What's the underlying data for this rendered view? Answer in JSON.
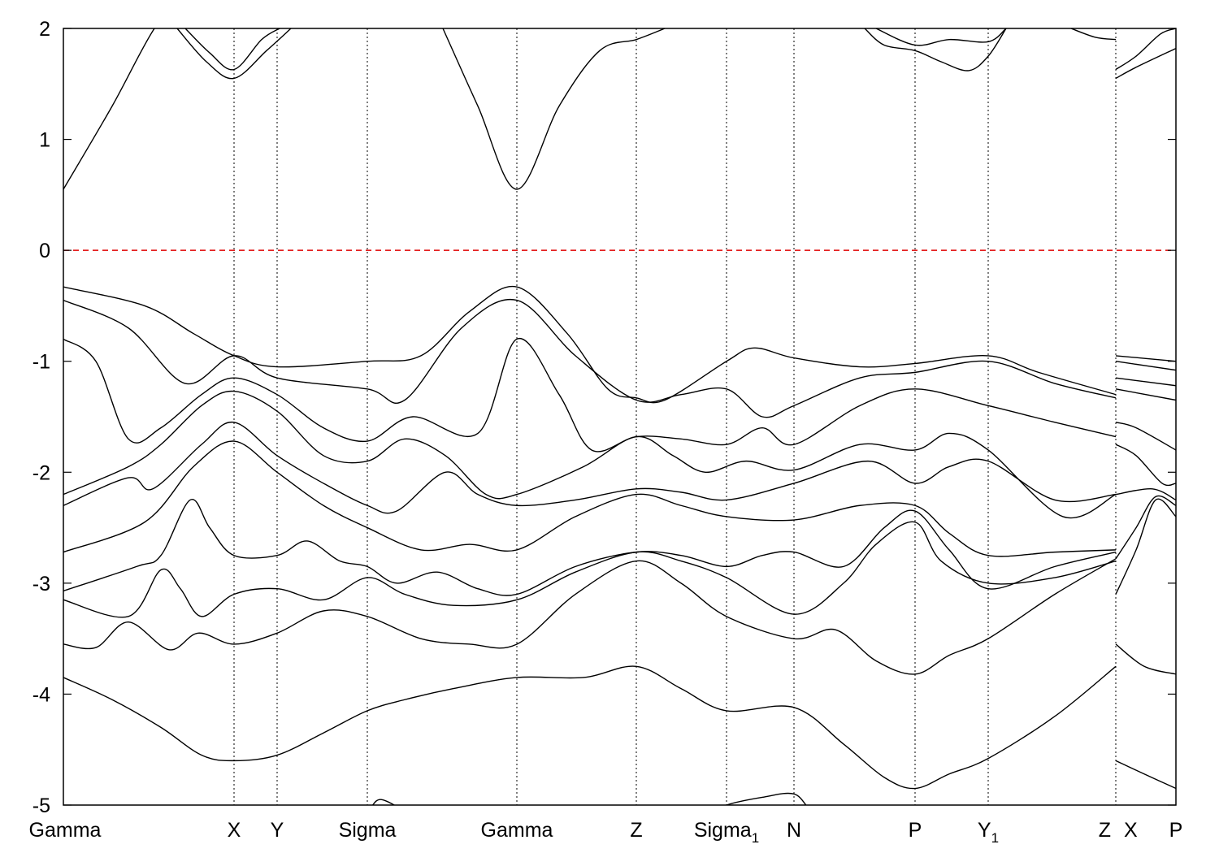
{
  "chart_data": {
    "type": "line",
    "title": "",
    "xlabel": "",
    "ylabel": "",
    "ylim": [
      -5,
      2
    ],
    "yticks": [
      2,
      1,
      0,
      -1,
      -2,
      -3,
      -4,
      -5
    ],
    "grid": "vertical dotted lines at high-symmetry points",
    "legend": "none",
    "fermi_level": {
      "value": 0,
      "color": "#e00000",
      "style": "dashed"
    },
    "band_color": "#000000",
    "kpoints": [
      {
        "label": "Gamma",
        "sub": "",
        "k": 0.0
      },
      {
        "label": "X",
        "sub": "",
        "k": 1.05
      },
      {
        "label": "Y",
        "sub": "",
        "k": 1.315
      },
      {
        "label": "Sigma",
        "sub": "",
        "k": 1.87
      },
      {
        "label": "Gamma",
        "sub": "",
        "k": 2.79
      },
      {
        "label": "Z",
        "sub": "",
        "k": 3.525
      },
      {
        "label": "Sigma",
        "sub": "1",
        "k": 4.08
      },
      {
        "label": "N",
        "sub": "",
        "k": 4.495
      },
      {
        "label": "P",
        "sub": "",
        "k": 5.24
      },
      {
        "label": "Y",
        "sub": "1",
        "k": 5.69
      },
      {
        "label": "Z",
        "sub": "",
        "k": 6.475,
        "side": "left"
      },
      {
        "label": "X",
        "sub": "",
        "k": 6.475,
        "side": "right"
      },
      {
        "label": "P",
        "sub": "",
        "k": 6.845
      }
    ],
    "xlim": [
      0,
      6.845
    ],
    "path_break_k": 6.475,
    "bands": [
      [
        [
          0,
          0.55
        ],
        [
          0.3,
          1.3
        ],
        [
          0.56,
          2.0
        ],
        [
          0.75,
          2.3
        ]
      ],
      [
        [
          0.7,
          2.0
        ],
        [
          0.88,
          1.7
        ],
        [
          1.05,
          1.55
        ],
        [
          1.25,
          1.8
        ],
        [
          1.4,
          2.0
        ]
      ],
      [
        [
          0.75,
          2.0
        ],
        [
          0.9,
          1.78
        ],
        [
          1.05,
          1.63
        ],
        [
          1.22,
          1.9
        ],
        [
          1.33,
          2.0
        ]
      ],
      [
        [
          2.335,
          2.0
        ],
        [
          2.55,
          1.3
        ],
        [
          2.79,
          0.55
        ],
        [
          3.05,
          1.3
        ],
        [
          3.3,
          1.8
        ],
        [
          3.525,
          1.9
        ],
        [
          3.7,
          2.0
        ]
      ],
      [
        [
          4.93,
          2.0
        ],
        [
          5.05,
          1.85
        ],
        [
          5.24,
          1.8
        ],
        [
          5.4,
          1.7
        ],
        [
          5.57,
          1.62
        ],
        [
          5.69,
          1.75
        ],
        [
          5.8,
          2.0
        ]
      ],
      [
        [
          5.0,
          2.0
        ],
        [
          5.24,
          1.85
        ],
        [
          5.45,
          1.9
        ],
        [
          5.69,
          1.88
        ],
        [
          5.8,
          2.0
        ]
      ],
      [
        [
          6.2,
          2.0
        ],
        [
          6.35,
          1.92
        ],
        [
          6.475,
          1.9
        ]
      ],
      [
        [
          0,
          -0.33
        ],
        [
          0.5,
          -0.5
        ],
        [
          0.8,
          -0.75
        ],
        [
          1.05,
          -0.95
        ],
        [
          1.315,
          -1.05
        ],
        [
          1.87,
          -1.0
        ],
        [
          2.2,
          -0.95
        ],
        [
          2.5,
          -0.55
        ],
        [
          2.79,
          -0.33
        ],
        [
          3.1,
          -0.75
        ],
        [
          3.35,
          -1.25
        ],
        [
          3.525,
          -1.33
        ],
        [
          3.7,
          -1.35
        ],
        [
          4.08,
          -1.0
        ],
        [
          4.25,
          -0.88
        ],
        [
          4.495,
          -0.97
        ],
        [
          4.9,
          -1.05
        ],
        [
          5.24,
          -1.02
        ],
        [
          5.69,
          -0.95
        ],
        [
          6.0,
          -1.1
        ],
        [
          6.475,
          -1.3
        ]
      ],
      [
        [
          0,
          -0.45
        ],
        [
          0.4,
          -0.7
        ],
        [
          0.75,
          -1.2
        ],
        [
          1.05,
          -0.95
        ],
        [
          1.315,
          -1.15
        ],
        [
          1.87,
          -1.25
        ],
        [
          2.1,
          -1.35
        ],
        [
          2.45,
          -0.7
        ],
        [
          2.79,
          -0.45
        ],
        [
          3.15,
          -0.95
        ],
        [
          3.525,
          -1.35
        ],
        [
          3.8,
          -1.3
        ],
        [
          4.08,
          -1.25
        ],
        [
          4.3,
          -1.5
        ],
        [
          4.495,
          -1.4
        ],
        [
          4.9,
          -1.15
        ],
        [
          5.24,
          -1.1
        ],
        [
          5.69,
          -1.0
        ],
        [
          6.1,
          -1.2
        ],
        [
          6.475,
          -1.33
        ]
      ],
      [
        [
          0,
          -0.8
        ],
        [
          0.2,
          -1.0
        ],
        [
          0.4,
          -1.7
        ],
        [
          0.6,
          -1.6
        ],
        [
          0.85,
          -1.3
        ],
        [
          1.05,
          -1.15
        ],
        [
          1.315,
          -1.3
        ],
        [
          1.6,
          -1.6
        ],
        [
          1.87,
          -1.72
        ],
        [
          2.15,
          -1.5
        ],
        [
          2.55,
          -1.65
        ],
        [
          2.79,
          -0.8
        ],
        [
          3.05,
          -1.3
        ],
        [
          3.25,
          -1.8
        ],
        [
          3.525,
          -1.68
        ],
        [
          3.8,
          -1.7
        ],
        [
          4.08,
          -1.75
        ],
        [
          4.3,
          -1.6
        ],
        [
          4.495,
          -1.75
        ],
        [
          4.9,
          -1.4
        ],
        [
          5.24,
          -1.25
        ],
        [
          5.69,
          -1.4
        ],
        [
          6.1,
          -1.55
        ],
        [
          6.475,
          -1.68
        ]
      ],
      [
        [
          0,
          -2.2
        ],
        [
          0.4,
          -1.95
        ],
        [
          0.6,
          -1.75
        ],
        [
          0.85,
          -1.4
        ],
        [
          1.05,
          -1.27
        ],
        [
          1.315,
          -1.45
        ],
        [
          1.6,
          -1.85
        ],
        [
          1.87,
          -1.9
        ],
        [
          2.1,
          -1.7
        ],
        [
          2.35,
          -1.85
        ],
        [
          2.6,
          -2.2
        ],
        [
          2.79,
          -2.2
        ],
        [
          3.2,
          -1.95
        ],
        [
          3.525,
          -1.68
        ],
        [
          3.75,
          -1.85
        ],
        [
          3.95,
          -2.0
        ],
        [
          4.2,
          -1.9
        ],
        [
          4.495,
          -1.98
        ],
        [
          4.9,
          -1.75
        ],
        [
          5.24,
          -1.8
        ],
        [
          5.45,
          -1.65
        ],
        [
          5.69,
          -1.8
        ],
        [
          6.15,
          -2.4
        ],
        [
          6.475,
          -2.2
        ]
      ],
      [
        [
          0,
          -2.3
        ],
        [
          0.4,
          -2.05
        ],
        [
          0.55,
          -2.15
        ],
        [
          0.85,
          -1.75
        ],
        [
          1.05,
          -1.55
        ],
        [
          1.315,
          -1.85
        ],
        [
          1.6,
          -2.1
        ],
        [
          1.87,
          -2.3
        ],
        [
          2.05,
          -2.35
        ],
        [
          2.35,
          -2.0
        ],
        [
          2.55,
          -2.2
        ],
        [
          2.79,
          -2.3
        ],
        [
          3.15,
          -2.25
        ],
        [
          3.525,
          -2.15
        ],
        [
          3.8,
          -2.18
        ],
        [
          4.08,
          -2.25
        ],
        [
          4.495,
          -2.1
        ],
        [
          4.95,
          -1.9
        ],
        [
          5.24,
          -2.1
        ],
        [
          5.45,
          -1.95
        ],
        [
          5.69,
          -1.9
        ],
        [
          6.1,
          -2.25
        ],
        [
          6.475,
          -2.2
        ]
      ],
      [
        [
          0,
          -2.72
        ],
        [
          0.5,
          -2.45
        ],
        [
          0.8,
          -1.95
        ],
        [
          1.05,
          -1.72
        ],
        [
          1.315,
          -2.0
        ],
        [
          1.6,
          -2.3
        ],
        [
          1.87,
          -2.5
        ],
        [
          2.2,
          -2.7
        ],
        [
          2.5,
          -2.65
        ],
        [
          2.79,
          -2.7
        ],
        [
          3.15,
          -2.4
        ],
        [
          3.525,
          -2.2
        ],
        [
          3.8,
          -2.3
        ],
        [
          4.08,
          -2.4
        ],
        [
          4.495,
          -2.43
        ],
        [
          4.9,
          -2.3
        ],
        [
          5.24,
          -2.3
        ],
        [
          5.45,
          -2.55
        ],
        [
          5.69,
          -2.75
        ],
        [
          6.1,
          -2.72
        ],
        [
          6.475,
          -2.7
        ]
      ],
      [
        [
          0,
          -3.07
        ],
        [
          0.45,
          -2.85
        ],
        [
          0.6,
          -2.75
        ],
        [
          0.78,
          -2.25
        ],
        [
          0.9,
          -2.5
        ],
        [
          1.05,
          -2.75
        ],
        [
          1.315,
          -2.75
        ],
        [
          1.5,
          -2.62
        ],
        [
          1.7,
          -2.8
        ],
        [
          1.87,
          -2.85
        ],
        [
          2.05,
          -3.0
        ],
        [
          2.3,
          -2.9
        ],
        [
          2.55,
          -3.05
        ],
        [
          2.79,
          -3.1
        ],
        [
          3.15,
          -2.85
        ],
        [
          3.525,
          -2.72
        ],
        [
          3.8,
          -2.75
        ],
        [
          4.08,
          -2.85
        ],
        [
          4.3,
          -2.75
        ],
        [
          4.495,
          -2.72
        ],
        [
          4.8,
          -2.85
        ],
        [
          5.05,
          -2.5
        ],
        [
          5.24,
          -2.35
        ],
        [
          5.45,
          -2.7
        ],
        [
          5.69,
          -3.05
        ],
        [
          6.1,
          -2.85
        ],
        [
          6.475,
          -2.72
        ]
      ],
      [
        [
          0,
          -3.15
        ],
        [
          0.4,
          -3.3
        ],
        [
          0.6,
          -2.88
        ],
        [
          0.72,
          -3.05
        ],
        [
          0.85,
          -3.3
        ],
        [
          1.05,
          -3.1
        ],
        [
          1.315,
          -3.05
        ],
        [
          1.6,
          -3.15
        ],
        [
          1.87,
          -2.95
        ],
        [
          2.1,
          -3.1
        ],
        [
          2.4,
          -3.2
        ],
        [
          2.79,
          -3.15
        ],
        [
          3.15,
          -2.9
        ],
        [
          3.525,
          -2.72
        ],
        [
          3.8,
          -2.8
        ],
        [
          4.08,
          -2.95
        ],
        [
          4.495,
          -3.28
        ],
        [
          4.8,
          -3.0
        ],
        [
          5.0,
          -2.65
        ],
        [
          5.24,
          -2.45
        ],
        [
          5.4,
          -2.8
        ],
        [
          5.69,
          -3.0
        ],
        [
          6.1,
          -2.95
        ],
        [
          6.475,
          -2.8
        ]
      ],
      [
        [
          0,
          -3.55
        ],
        [
          0.2,
          -3.58
        ],
        [
          0.4,
          -3.35
        ],
        [
          0.65,
          -3.6
        ],
        [
          0.83,
          -3.45
        ],
        [
          1.05,
          -3.55
        ],
        [
          1.315,
          -3.45
        ],
        [
          1.6,
          -3.25
        ],
        [
          1.87,
          -3.3
        ],
        [
          2.2,
          -3.5
        ],
        [
          2.5,
          -3.55
        ],
        [
          2.79,
          -3.55
        ],
        [
          3.15,
          -3.1
        ],
        [
          3.525,
          -2.8
        ],
        [
          3.8,
          -3.0
        ],
        [
          4.08,
          -3.3
        ],
        [
          4.495,
          -3.5
        ],
        [
          4.75,
          -3.42
        ],
        [
          5.0,
          -3.7
        ],
        [
          5.24,
          -3.82
        ],
        [
          5.45,
          -3.65
        ],
        [
          5.69,
          -3.5
        ],
        [
          6.1,
          -3.1
        ],
        [
          6.475,
          -2.78
        ]
      ],
      [
        [
          0,
          -3.85
        ],
        [
          0.3,
          -4.05
        ],
        [
          0.6,
          -4.3
        ],
        [
          0.85,
          -4.55
        ],
        [
          1.05,
          -4.6
        ],
        [
          1.315,
          -4.55
        ],
        [
          1.6,
          -4.35
        ],
        [
          1.87,
          -4.15
        ],
        [
          2.1,
          -4.05
        ],
        [
          2.4,
          -3.95
        ],
        [
          2.79,
          -3.85
        ],
        [
          3.2,
          -3.85
        ],
        [
          3.525,
          -3.75
        ],
        [
          3.8,
          -3.95
        ],
        [
          4.08,
          -4.15
        ],
        [
          4.495,
          -4.12
        ],
        [
          4.8,
          -4.45
        ],
        [
          5.05,
          -4.75
        ],
        [
          5.24,
          -4.85
        ],
        [
          5.45,
          -4.72
        ],
        [
          5.69,
          -4.58
        ],
        [
          6.1,
          -4.2
        ],
        [
          6.475,
          -3.75
        ]
      ],
      [
        [
          1.75,
          -5.1
        ],
        [
          1.87,
          -5.05
        ],
        [
          1.95,
          -4.95
        ],
        [
          2.1,
          -5.05
        ],
        [
          2.2,
          -5.1
        ]
      ],
      [
        [
          3.95,
          -5.1
        ],
        [
          4.08,
          -5.0
        ],
        [
          4.3,
          -4.93
        ],
        [
          4.495,
          -4.9
        ],
        [
          4.6,
          -5.05
        ],
        [
          4.7,
          -5.1
        ]
      ],
      [
        [
          6.475,
          1.55
        ],
        [
          6.6,
          1.65
        ],
        [
          6.845,
          1.82
        ]
      ],
      [
        [
          6.475,
          1.63
        ],
        [
          6.6,
          1.75
        ],
        [
          6.75,
          1.95
        ],
        [
          6.845,
          2.0
        ]
      ],
      [
        [
          6.475,
          -0.95
        ],
        [
          6.845,
          -1.0
        ]
      ],
      [
        [
          6.475,
          -1.0
        ],
        [
          6.845,
          -1.08
        ]
      ],
      [
        [
          6.475,
          -1.15
        ],
        [
          6.845,
          -1.22
        ]
      ],
      [
        [
          6.475,
          -1.25
        ],
        [
          6.845,
          -1.35
        ]
      ],
      [
        [
          6.475,
          -1.55
        ],
        [
          6.6,
          -1.6
        ],
        [
          6.845,
          -1.8
        ]
      ],
      [
        [
          6.475,
          -1.75
        ],
        [
          6.6,
          -1.85
        ],
        [
          6.76,
          -2.1
        ],
        [
          6.845,
          -2.1
        ]
      ],
      [
        [
          6.475,
          -2.2
        ],
        [
          6.7,
          -2.15
        ],
        [
          6.845,
          -2.25
        ]
      ],
      [
        [
          6.475,
          -2.78
        ],
        [
          6.6,
          -2.5
        ],
        [
          6.72,
          -2.22
        ],
        [
          6.845,
          -2.3
        ]
      ],
      [
        [
          6.475,
          -3.1
        ],
        [
          6.6,
          -2.7
        ],
        [
          6.72,
          -2.25
        ],
        [
          6.845,
          -2.4
        ]
      ],
      [
        [
          6.475,
          -3.55
        ],
        [
          6.65,
          -3.75
        ],
        [
          6.845,
          -3.82
        ]
      ],
      [
        [
          6.475,
          -4.6
        ],
        [
          6.65,
          -4.72
        ],
        [
          6.845,
          -4.85
        ]
      ]
    ]
  }
}
